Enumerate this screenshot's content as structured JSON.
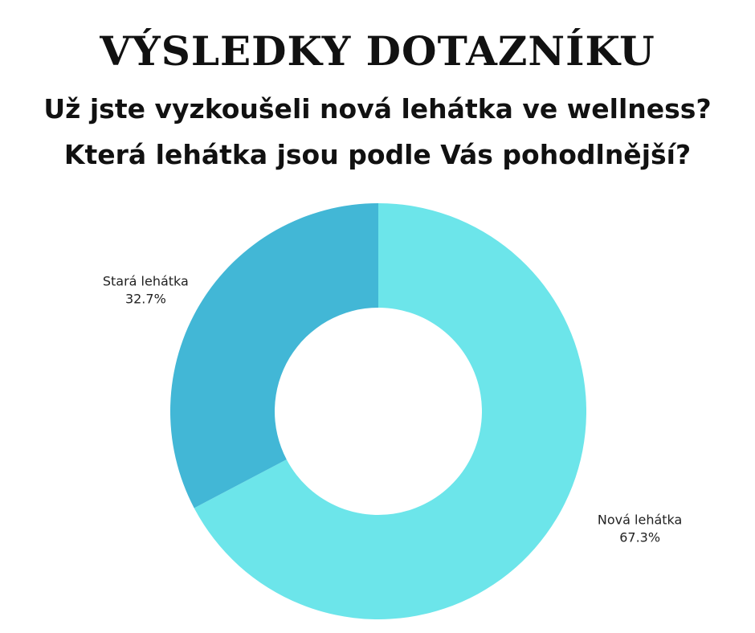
{
  "title": "VÝSLEDKY DOTAZNÍKU",
  "subtitle_line1": "Už jste vyzkoušeli nová lehátka ve wellness?",
  "subtitle_line2": "Která lehátka jsou podle Vás pohodlnější?",
  "chart_data": {
    "type": "pie",
    "variant": "donut",
    "categories": [
      "Nová lehátka",
      "Stará lehátka"
    ],
    "values": [
      67.3,
      32.7
    ],
    "value_labels": [
      "67.3%",
      "32.7%"
    ],
    "colors": [
      "#6ce5ea",
      "#42b7d6"
    ],
    "legend": "none"
  }
}
